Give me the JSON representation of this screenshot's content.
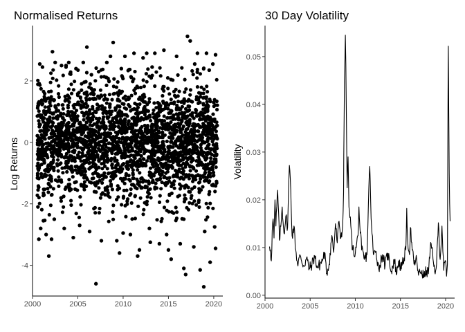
{
  "chart_data": [
    {
      "type": "scatter",
      "title": "Normalised Returns",
      "xlabel": "",
      "ylabel": "Log Returns",
      "xlim": [
        2000.0,
        2021.0
      ],
      "ylim": [
        -5.0,
        3.8
      ],
      "x_ticks": [
        2000,
        2005,
        2010,
        2015,
        2020
      ],
      "x_tick_labels": [
        "2000",
        "2005",
        "2010",
        "2015",
        "2020"
      ],
      "y_ticks": [
        2,
        0,
        -2,
        -4
      ],
      "y_tick_labels": [
        "2",
        "0",
        "-2",
        "-4"
      ],
      "grid": false,
      "point_color": "#000000",
      "points": [
        [
          2000.6,
          -2.1
        ],
        [
          2000.9,
          -2.8
        ],
        [
          2001.2,
          -2.55
        ],
        [
          2001.5,
          -3.0
        ],
        [
          2001.8,
          -3.7
        ],
        [
          2002.1,
          -3.15
        ],
        [
          2002.4,
          -2.5
        ],
        [
          2000.8,
          2.55
        ],
        [
          2001.1,
          2.45
        ],
        [
          2002.2,
          2.95
        ],
        [
          2002.5,
          2.6
        ],
        [
          2003.2,
          2.5
        ],
        [
          2004.0,
          2.6
        ],
        [
          2004.8,
          2.4
        ],
        [
          2005.6,
          2.6
        ],
        [
          2006.0,
          3.1
        ],
        [
          2006.5,
          2.2
        ],
        [
          2007.0,
          -4.6
        ],
        [
          2007.3,
          2.3
        ],
        [
          2007.6,
          -3.2
        ],
        [
          2008.2,
          2.6
        ],
        [
          2008.6,
          2.8
        ],
        [
          2008.9,
          3.25
        ],
        [
          2009.3,
          -3.2
        ],
        [
          2009.6,
          -3.6
        ],
        [
          2010.2,
          2.8
        ],
        [
          2010.8,
          -3.0
        ],
        [
          2011.2,
          2.9
        ],
        [
          2011.6,
          -3.7
        ],
        [
          2011.8,
          -3.5
        ],
        [
          2012.2,
          2.75
        ],
        [
          2012.6,
          2.9
        ],
        [
          2013.0,
          -3.25
        ],
        [
          2013.5,
          2.9
        ],
        [
          2014.0,
          -3.3
        ],
        [
          2014.5,
          3.0
        ],
        [
          2015.0,
          -3.5
        ],
        [
          2015.3,
          -3.8
        ],
        [
          2015.9,
          2.8
        ],
        [
          2016.3,
          -3.3
        ],
        [
          2016.7,
          -4.1
        ],
        [
          2016.9,
          -4.3
        ],
        [
          2017.1,
          3.45
        ],
        [
          2017.4,
          3.3
        ],
        [
          2017.8,
          -3.4
        ],
        [
          2018.2,
          2.9
        ],
        [
          2018.5,
          -4.15
        ],
        [
          2018.9,
          -4.7
        ],
        [
          2019.2,
          2.9
        ],
        [
          2019.6,
          -3.9
        ],
        [
          2019.9,
          2.55
        ],
        [
          2020.2,
          -3.45
        ],
        [
          2020.2,
          2.85
        ],
        [
          2000.7,
          -3.15
        ],
        [
          2003.5,
          -2.8
        ],
        [
          2004.5,
          -3.1
        ],
        [
          2005.2,
          -2.7
        ],
        [
          2006.3,
          -2.9
        ],
        [
          2010.0,
          -2.95
        ],
        [
          2012.9,
          -2.8
        ],
        [
          2014.8,
          -3.0
        ],
        [
          2019.0,
          -2.9
        ],
        [
          2020.1,
          -2.75
        ],
        [
          2003.7,
          2.5
        ],
        [
          2009.8,
          2.4
        ],
        [
          2013.2,
          2.45
        ],
        [
          2017.9,
          2.55
        ],
        [
          2019.5,
          2.35
        ]
      ]
    },
    {
      "type": "line",
      "title": "30 Day Volatility",
      "xlabel": "",
      "ylabel": "Volatility",
      "xlim": [
        2000.0,
        2021.0
      ],
      "ylim": [
        -0.0006,
        0.0565
      ],
      "x_ticks": [
        2000,
        2005,
        2010,
        2015,
        2020
      ],
      "x_tick_labels": [
        "2000",
        "2005",
        "2010",
        "2015",
        "2020"
      ],
      "y_ticks": [
        0.0,
        0.01,
        0.02,
        0.03,
        0.04,
        0.05
      ],
      "y_tick_labels": [
        "0.00",
        "0.01",
        "0.02",
        "0.03",
        "0.04",
        "0.05"
      ],
      "grid": false,
      "line_color": "#000000",
      "x": [
        2000.5,
        2000.6,
        2000.7,
        2000.8,
        2000.9,
        2001.0,
        2001.1,
        2001.2,
        2001.4,
        2001.6,
        2001.8,
        2001.9,
        2002.1,
        2002.3,
        2002.5,
        2002.6,
        2002.7,
        2002.8,
        2003.0,
        2003.2,
        2003.4,
        2003.6,
        2003.8,
        2004.0,
        2004.3,
        2004.6,
        2004.9,
        2005.2,
        2005.5,
        2005.8,
        2006.1,
        2006.4,
        2006.6,
        2006.8,
        2007.1,
        2007.4,
        2007.6,
        2007.8,
        2008.0,
        2008.2,
        2008.4,
        2008.6,
        2008.7,
        2008.75,
        2008.8,
        2008.9,
        2009.0,
        2009.1,
        2009.2,
        2009.3,
        2009.5,
        2009.7,
        2010.0,
        2010.3,
        2010.4,
        2010.5,
        2010.7,
        2011.0,
        2011.3,
        2011.5,
        2011.6,
        2011.7,
        2011.8,
        2012.0,
        2012.3,
        2012.6,
        2013.0,
        2013.3,
        2013.6,
        2014.0,
        2014.3,
        2014.6,
        2014.8,
        2015.1,
        2015.4,
        2015.6,
        2015.7,
        2015.8,
        2016.0,
        2016.1,
        2016.3,
        2016.5,
        2016.8,
        2017.0,
        2017.3,
        2017.6,
        2017.9,
        2018.1,
        2018.2,
        2018.4,
        2018.7,
        2018.9,
        2019.0,
        2019.2,
        2019.4,
        2019.6,
        2019.8,
        2020.0,
        2020.1,
        2020.2,
        2020.25,
        2020.3,
        2020.4,
        2020.5
      ],
      "y": [
        0.0102,
        0.0095,
        0.0072,
        0.0135,
        0.016,
        0.012,
        0.02,
        0.0145,
        0.022,
        0.0115,
        0.0155,
        0.0185,
        0.013,
        0.0165,
        0.0142,
        0.0215,
        0.0272,
        0.0245,
        0.0125,
        0.0145,
        0.0095,
        0.0065,
        0.008,
        0.0075,
        0.0062,
        0.0078,
        0.0055,
        0.0065,
        0.0082,
        0.0058,
        0.0065,
        0.0075,
        0.009,
        0.0045,
        0.0065,
        0.0125,
        0.009,
        0.015,
        0.011,
        0.0155,
        0.012,
        0.0145,
        0.0215,
        0.035,
        0.045,
        0.0545,
        0.04,
        0.0225,
        0.029,
        0.0185,
        0.0145,
        0.0095,
        0.0088,
        0.0125,
        0.0185,
        0.0145,
        0.0095,
        0.0075,
        0.0085,
        0.0225,
        0.027,
        0.0195,
        0.0145,
        0.0085,
        0.0092,
        0.0055,
        0.0085,
        0.0062,
        0.0088,
        0.005,
        0.0075,
        0.0045,
        0.0072,
        0.0055,
        0.0078,
        0.0095,
        0.0182,
        0.0115,
        0.0085,
        0.0142,
        0.0095,
        0.0065,
        0.0075,
        0.0042,
        0.0052,
        0.0038,
        0.0052,
        0.0045,
        0.008,
        0.0108,
        0.006,
        0.0052,
        0.0065,
        0.0152,
        0.0075,
        0.0145,
        0.0052,
        0.0072,
        0.004,
        0.0065,
        0.0325,
        0.0522,
        0.0255,
        0.0155
      ]
    }
  ]
}
